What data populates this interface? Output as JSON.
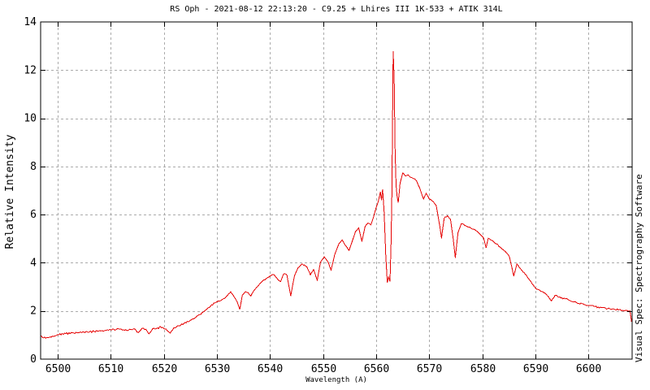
{
  "chart_data": {
    "type": "line",
    "title": "RS Oph - 2021-08-12 22:13:20 - C9.25 + Lhires III 1K-533 + ATIK 314L",
    "xlabel": "Wavelength (A)",
    "ylabel": "Relative Intensity",
    "watermark": "Visual Spec: Spectrography Software",
    "xlim": [
      6496.8,
      6608.2
    ],
    "ylim": [
      0,
      14
    ],
    "xticks": [
      6500,
      6510,
      6520,
      6530,
      6540,
      6550,
      6560,
      6570,
      6580,
      6590,
      6600
    ],
    "yticks": [
      0,
      2,
      4,
      6,
      8,
      10,
      12,
      14
    ],
    "grid": true,
    "legend": "none",
    "line_color": "#e60000",
    "grid_color": "#ababab",
    "axis_color": "#000000",
    "noise": 0.04,
    "points": [
      [
        6496.9,
        0.97
      ],
      [
        6497.3,
        0.88
      ],
      [
        6498.0,
        0.9
      ],
      [
        6499.0,
        0.95
      ],
      [
        6500.0,
        1.02
      ],
      [
        6501.5,
        1.06
      ],
      [
        6503.0,
        1.09
      ],
      [
        6504.5,
        1.1
      ],
      [
        6506.0,
        1.13
      ],
      [
        6507.5,
        1.16
      ],
      [
        6509.0,
        1.19
      ],
      [
        6510.0,
        1.21
      ],
      [
        6511.0,
        1.23
      ],
      [
        6512.0,
        1.24
      ],
      [
        6513.0,
        1.19
      ],
      [
        6513.6,
        1.24
      ],
      [
        6514.4,
        1.26
      ],
      [
        6515.2,
        1.1
      ],
      [
        6515.8,
        1.26
      ],
      [
        6516.6,
        1.24
      ],
      [
        6517.2,
        1.05
      ],
      [
        6517.9,
        1.26
      ],
      [
        6518.8,
        1.3
      ],
      [
        6519.8,
        1.32
      ],
      [
        6520.6,
        1.2
      ],
      [
        6521.2,
        1.08
      ],
      [
        6521.9,
        1.3
      ],
      [
        6522.8,
        1.38
      ],
      [
        6523.8,
        1.48
      ],
      [
        6524.8,
        1.58
      ],
      [
        6525.8,
        1.7
      ],
      [
        6526.8,
        1.85
      ],
      [
        6527.8,
        2.02
      ],
      [
        6528.8,
        2.2
      ],
      [
        6529.6,
        2.33
      ],
      [
        6530.4,
        2.42
      ],
      [
        6531.2,
        2.5
      ],
      [
        6532.0,
        2.64
      ],
      [
        6532.6,
        2.8
      ],
      [
        6533.2,
        2.6
      ],
      [
        6533.8,
        2.38
      ],
      [
        6534.3,
        2.06
      ],
      [
        6534.8,
        2.66
      ],
      [
        6535.4,
        2.8
      ],
      [
        6536.0,
        2.72
      ],
      [
        6536.4,
        2.62
      ],
      [
        6537.0,
        2.86
      ],
      [
        6537.7,
        3.02
      ],
      [
        6538.4,
        3.2
      ],
      [
        6539.2,
        3.32
      ],
      [
        6540.0,
        3.45
      ],
      [
        6540.8,
        3.5
      ],
      [
        6541.5,
        3.3
      ],
      [
        6542.0,
        3.22
      ],
      [
        6542.6,
        3.55
      ],
      [
        6543.2,
        3.48
      ],
      [
        6543.9,
        2.62
      ],
      [
        6544.6,
        3.45
      ],
      [
        6545.3,
        3.8
      ],
      [
        6546.1,
        3.95
      ],
      [
        6546.9,
        3.85
      ],
      [
        6547.6,
        3.5
      ],
      [
        6548.2,
        3.72
      ],
      [
        6548.9,
        3.28
      ],
      [
        6549.5,
        4.02
      ],
      [
        6550.2,
        4.25
      ],
      [
        6550.9,
        4.05
      ],
      [
        6551.5,
        3.7
      ],
      [
        6552.2,
        4.35
      ],
      [
        6553.0,
        4.8
      ],
      [
        6553.6,
        4.95
      ],
      [
        6554.2,
        4.72
      ],
      [
        6554.9,
        4.52
      ],
      [
        6555.5,
        4.9
      ],
      [
        6556.1,
        5.3
      ],
      [
        6556.7,
        5.45
      ],
      [
        6557.3,
        4.88
      ],
      [
        6557.9,
        5.5
      ],
      [
        6558.5,
        5.65
      ],
      [
        6559.0,
        5.58
      ],
      [
        6559.5,
        5.9
      ],
      [
        6560.0,
        6.3
      ],
      [
        6560.4,
        6.55
      ],
      [
        6560.8,
        6.95
      ],
      [
        6561.0,
        6.6
      ],
      [
        6561.2,
        7.05
      ],
      [
        6561.5,
        6.1
      ],
      [
        6561.8,
        4.3
      ],
      [
        6562.1,
        3.18
      ],
      [
        6562.35,
        3.4
      ],
      [
        6562.6,
        3.22
      ],
      [
        6562.8,
        4.8
      ],
      [
        6562.95,
        6.8
      ],
      [
        6563.1,
        10.5
      ],
      [
        6563.2,
        12.78
      ],
      [
        6563.4,
        11.6
      ],
      [
        6563.55,
        8.8
      ],
      [
        6563.75,
        7.2
      ],
      [
        6563.95,
        6.75
      ],
      [
        6564.15,
        6.5
      ],
      [
        6564.5,
        7.3
      ],
      [
        6565.0,
        7.73
      ],
      [
        6565.5,
        7.6
      ],
      [
        6566.0,
        7.65
      ],
      [
        6566.5,
        7.55
      ],
      [
        6567.0,
        7.5
      ],
      [
        6567.6,
        7.4
      ],
      [
        6568.2,
        7.1
      ],
      [
        6568.9,
        6.65
      ],
      [
        6569.4,
        6.88
      ],
      [
        6570.0,
        6.65
      ],
      [
        6570.7,
        6.55
      ],
      [
        6571.3,
        6.38
      ],
      [
        6572.0,
        5.5
      ],
      [
        6572.3,
        5.02
      ],
      [
        6572.8,
        5.85
      ],
      [
        6573.4,
        5.95
      ],
      [
        6574.0,
        5.8
      ],
      [
        6574.5,
        5.0
      ],
      [
        6574.9,
        4.2
      ],
      [
        6575.4,
        5.25
      ],
      [
        6576.0,
        5.62
      ],
      [
        6576.7,
        5.55
      ],
      [
        6577.4,
        5.48
      ],
      [
        6578.1,
        5.4
      ],
      [
        6578.9,
        5.32
      ],
      [
        6579.6,
        5.18
      ],
      [
        6580.2,
        5.05
      ],
      [
        6580.7,
        4.62
      ],
      [
        6581.1,
        5.02
      ],
      [
        6581.9,
        4.92
      ],
      [
        6582.7,
        4.78
      ],
      [
        6583.5,
        4.62
      ],
      [
        6584.3,
        4.48
      ],
      [
        6585.1,
        4.25
      ],
      [
        6585.9,
        3.45
      ],
      [
        6586.5,
        3.95
      ],
      [
        6587.3,
        3.72
      ],
      [
        6588.1,
        3.52
      ],
      [
        6589.0,
        3.25
      ],
      [
        6590.0,
        2.95
      ],
      [
        6591.0,
        2.82
      ],
      [
        6592.0,
        2.7
      ],
      [
        6593.0,
        2.42
      ],
      [
        6593.7,
        2.65
      ],
      [
        6594.6,
        2.58
      ],
      [
        6595.6,
        2.5
      ],
      [
        6596.6,
        2.42
      ],
      [
        6597.7,
        2.35
      ],
      [
        6598.8,
        2.3
      ],
      [
        6600.0,
        2.22
      ],
      [
        6601.2,
        2.18
      ],
      [
        6602.4,
        2.14
      ],
      [
        6603.6,
        2.1
      ],
      [
        6604.8,
        2.08
      ],
      [
        6606.0,
        2.05
      ],
      [
        6607.0,
        2.03
      ],
      [
        6607.8,
        2.0
      ],
      [
        6608.1,
        1.55
      ]
    ]
  }
}
